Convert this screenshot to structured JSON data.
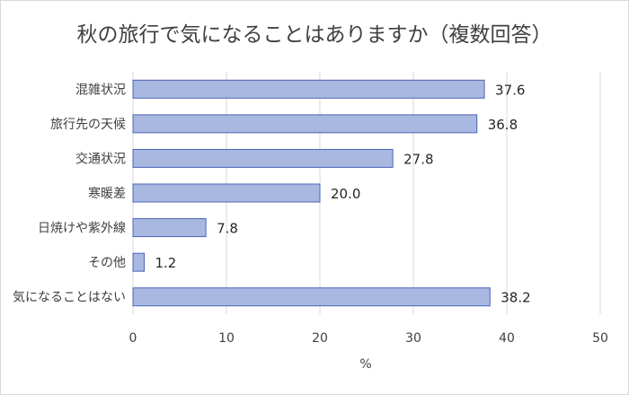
{
  "chart_data": {
    "type": "bar",
    "orientation": "horizontal",
    "title": "秋の旅行で気になることはありますか（複数回答）",
    "categories": [
      "混雑状況",
      "旅行先の天候",
      "交通状況",
      "寒暖差",
      "日焼けや紫外線",
      "その他",
      "気になることはない"
    ],
    "values": [
      37.6,
      36.8,
      27.8,
      20.0,
      7.8,
      1.2,
      38.2
    ],
    "value_labels": [
      "37.6",
      "36.8",
      "27.8",
      "20.0",
      "7.8",
      "1.2",
      "38.2"
    ],
    "xlabel": "%",
    "ylabel": "",
    "xlim": [
      0,
      50
    ],
    "xticks": [
      "0",
      "10",
      "20",
      "30",
      "40",
      "50"
    ],
    "grid": true,
    "legend": "none",
    "colors": {
      "bar_fill": "#a9b8e0",
      "bar_stroke": "#4a64b8",
      "grid": "#d9d9d9"
    }
  }
}
